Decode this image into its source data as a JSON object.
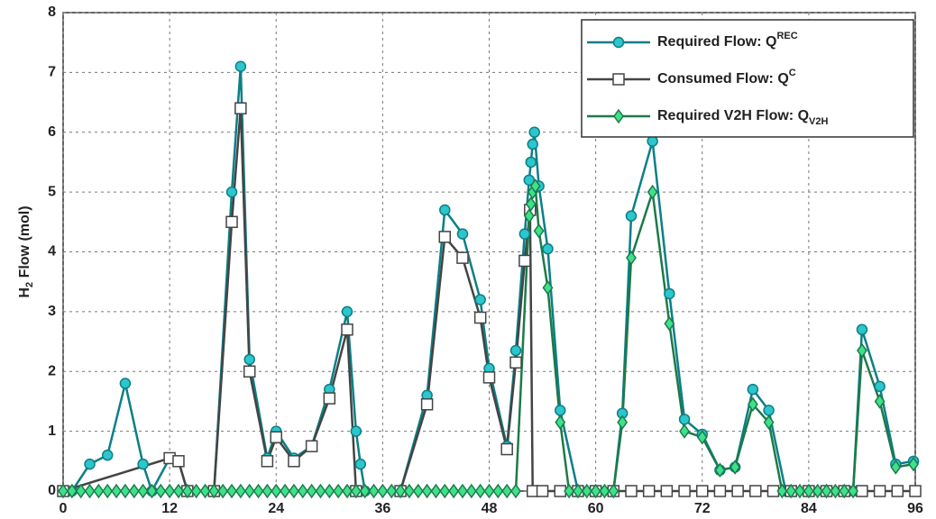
{
  "chart_data": {
    "type": "line",
    "ylabel": {
      "text": "H",
      "sub": "2",
      "rest": " Flow (mol)"
    },
    "xlim": [
      0,
      96
    ],
    "xticks": [
      0,
      12,
      24,
      36,
      48,
      60,
      72,
      84,
      96
    ],
    "ylim": [
      0,
      8
    ],
    "yticks": [
      0,
      1,
      2,
      3,
      4,
      5,
      6,
      7,
      8
    ],
    "grid": true,
    "legend": "upper right",
    "series": [
      {
        "name": "Required Flow: Q",
        "sup": "REC",
        "color": "#0b7f86",
        "marker": "circle",
        "marker_color": "#2cc6cc",
        "x": [
          0,
          1,
          3,
          5,
          7,
          9,
          10,
          12,
          13,
          14,
          17,
          19,
          20,
          21,
          23,
          24,
          26,
          28,
          30,
          32,
          33,
          33.5,
          34,
          38,
          41,
          43,
          45,
          47,
          48,
          50,
          51,
          52,
          52.5,
          52.7,
          52.9,
          53.1,
          53.6,
          54.6,
          56,
          58,
          62,
          63,
          64,
          66.4,
          68.3,
          70,
          72,
          74,
          75.7,
          77.7,
          79.5,
          81.4,
          89,
          90,
          92,
          93.8,
          95.8
        ],
        "values": [
          0,
          0,
          0.45,
          0.6,
          1.8,
          0.45,
          0,
          0.55,
          0.5,
          0,
          0,
          5.0,
          7.1,
          2.2,
          0.55,
          1.0,
          0.55,
          0.75,
          1.7,
          3.0,
          1.0,
          0.45,
          0,
          0,
          1.6,
          4.7,
          4.3,
          3.2,
          2.05,
          0.75,
          2.35,
          4.3,
          5.2,
          5.5,
          5.8,
          6.0,
          5.1,
          4.05,
          1.35,
          0,
          0,
          1.3,
          4.6,
          5.85,
          3.3,
          1.2,
          0.95,
          0.35,
          0.4,
          1.7,
          1.35,
          0,
          0,
          2.7,
          1.75,
          0.45,
          0.5
        ]
      },
      {
        "name": "Consumed Flow: Q",
        "sup": "C",
        "color": "#444444",
        "marker": "square",
        "marker_color": "#ffffff",
        "x": [
          0,
          12,
          13,
          14,
          17,
          19,
          20,
          21,
          23,
          24,
          26,
          28,
          30,
          32,
          33,
          38,
          41,
          43,
          45,
          47,
          48,
          50,
          51,
          52,
          52.6,
          52.9,
          54,
          56,
          58,
          60,
          62,
          64,
          66,
          68,
          70,
          72,
          74,
          76,
          78,
          80,
          82,
          84,
          86,
          88,
          90,
          92,
          94,
          96
        ],
        "values": [
          0,
          0.55,
          0.5,
          0,
          0,
          4.5,
          6.4,
          2.0,
          0.5,
          0.9,
          0.5,
          0.75,
          1.55,
          2.7,
          0,
          0,
          1.45,
          4.25,
          3.9,
          2.9,
          1.9,
          0.7,
          2.15,
          3.85,
          4.7,
          0,
          0,
          0,
          0,
          0,
          0,
          0,
          0,
          0,
          0,
          0,
          0,
          0,
          0,
          0,
          0,
          0,
          0,
          0,
          0,
          0,
          0,
          0
        ]
      },
      {
        "name": "Required V2H Flow: Q",
        "sub": "V2H",
        "color": "#1c7a4a",
        "marker": "diamond",
        "marker_color": "#3fe08a",
        "x": [
          0,
          1,
          2,
          3,
          4,
          5,
          6,
          7,
          8,
          9,
          10,
          11,
          12,
          13,
          14,
          15,
          16,
          17,
          18,
          19,
          20,
          21,
          22,
          23,
          24,
          25,
          26,
          27,
          28,
          29,
          30,
          31,
          32,
          33,
          34,
          35,
          36,
          37,
          38,
          39,
          40,
          41,
          42,
          43,
          44,
          45,
          46,
          47,
          48,
          49,
          50,
          51,
          52.5,
          52.7,
          52.9,
          53.2,
          53.6,
          54.6,
          56,
          57,
          58,
          59,
          60,
          61,
          62,
          63,
          64,
          66.4,
          68.3,
          70,
          72,
          74,
          75.7,
          77.7,
          79.5,
          81,
          82,
          83,
          84,
          85,
          86,
          87,
          88,
          89,
          90,
          92,
          93.8,
          95.8
        ],
        "values": [
          0,
          0,
          0,
          0,
          0,
          0,
          0,
          0,
          0,
          0,
          0,
          0,
          0,
          0,
          0,
          0,
          0,
          0,
          0,
          0,
          0,
          0,
          0,
          0,
          0,
          0,
          0,
          0,
          0,
          0,
          0,
          0,
          0,
          0,
          0,
          0,
          0,
          0,
          0,
          0,
          0,
          0,
          0,
          0,
          0,
          0,
          0,
          0,
          0,
          0,
          0,
          0,
          4.6,
          4.8,
          5.0,
          5.1,
          4.35,
          3.4,
          1.15,
          0,
          0,
          0,
          0,
          0,
          0,
          1.15,
          3.9,
          5.0,
          2.8,
          1.0,
          0.9,
          0.35,
          0.4,
          1.45,
          1.15,
          0,
          0,
          0,
          0,
          0,
          0,
          0,
          0,
          0,
          2.35,
          1.5,
          0.4,
          0.45
        ]
      }
    ]
  }
}
